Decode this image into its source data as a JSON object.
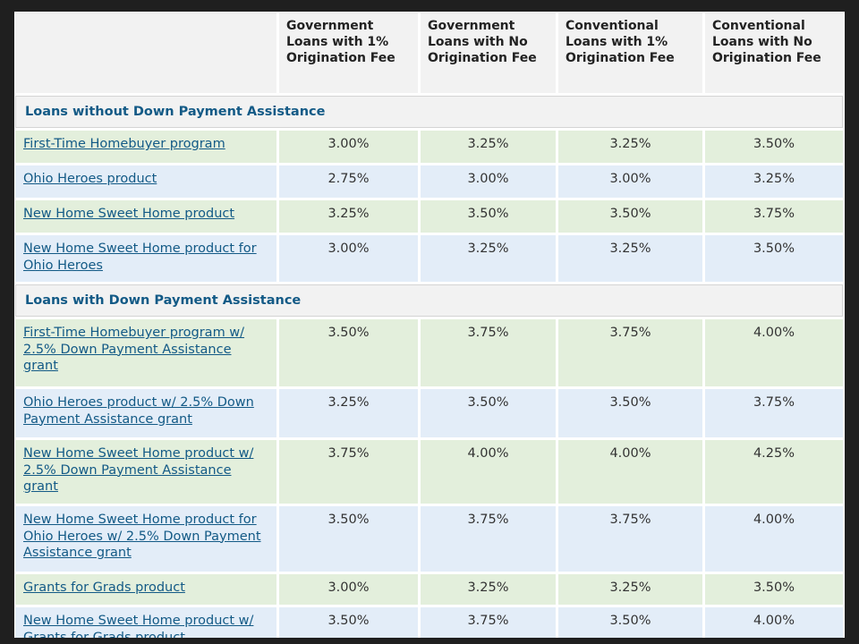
{
  "table": {
    "columns": [
      "",
      "Government Loans with 1% Origination Fee",
      "Government Loans with No Origination Fee",
      "Conventional Loans with 1% Origination Fee",
      "Conventional Loans with No Origination Fee"
    ],
    "sections": [
      {
        "title": "Loans without Down Payment Assistance",
        "rows": [
          {
            "name": "First-Time Homebuyer program",
            "rates": [
              "3.00%",
              "3.25%",
              "3.25%",
              "3.50%"
            ],
            "tint": "green"
          },
          {
            "name": "Ohio Heroes product",
            "rates": [
              "2.75%",
              "3.00%",
              "3.00%",
              "3.25%"
            ],
            "tint": "blue"
          },
          {
            "name": "New Home Sweet Home product",
            "rates": [
              "3.25%",
              "3.50%",
              "3.50%",
              "3.75%"
            ],
            "tint": "green"
          },
          {
            "name": "New Home Sweet Home product for Ohio Heroes",
            "rates": [
              "3.00%",
              "3.25%",
              "3.25%",
              "3.50%"
            ],
            "tint": "blue"
          }
        ]
      },
      {
        "title": "Loans with Down Payment Assistance",
        "rows": [
          {
            "name": "First-Time Homebuyer program w/ 2.5% Down Payment Assistance grant",
            "rates": [
              "3.50%",
              "3.75%",
              "3.75%",
              "4.00%"
            ],
            "tint": "green"
          },
          {
            "name": "Ohio Heroes product w/ 2.5% Down Payment Assistance grant",
            "rates": [
              "3.25%",
              "3.50%",
              "3.50%",
              "3.75%"
            ],
            "tint": "blue"
          },
          {
            "name": "New Home Sweet Home product w/ 2.5% Down Payment Assistance grant",
            "rates": [
              "3.75%",
              "4.00%",
              "4.00%",
              "4.25%"
            ],
            "tint": "green"
          },
          {
            "name": "New Home Sweet Home product for Ohio Heroes w/ 2.5% Down Payment Assistance grant",
            "rates": [
              "3.50%",
              "3.75%",
              "3.75%",
              "4.00%"
            ],
            "tint": "blue"
          },
          {
            "name": "Grants for Grads product",
            "rates": [
              "3.00%",
              "3.25%",
              "3.25%",
              "3.50%"
            ],
            "tint": "green"
          },
          {
            "name": "New Home Sweet Home product w/ Grants for Grads product",
            "rates": [
              "3.50%",
              "3.75%",
              "3.50%",
              "4.00%"
            ],
            "tint": "blue"
          }
        ]
      }
    ]
  },
  "colors": {
    "link": "#135a86",
    "row_green": "#e3efdc",
    "row_blue": "#e3edf8",
    "header_bg": "#f2f2f2"
  }
}
